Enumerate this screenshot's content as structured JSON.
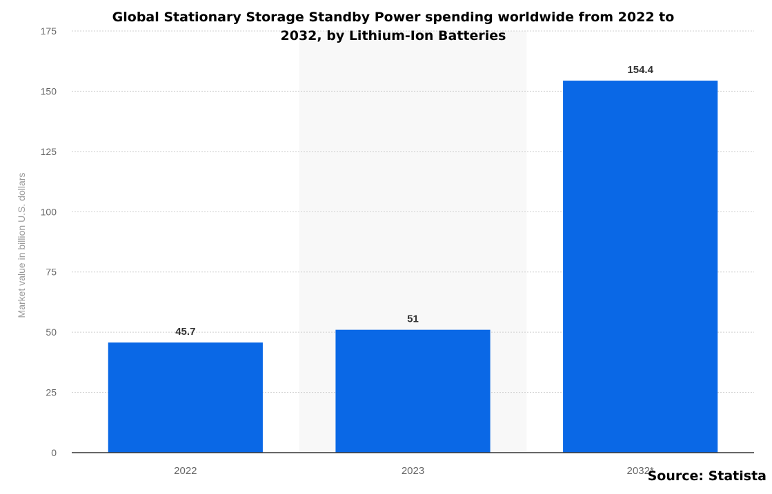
{
  "chart_data": {
    "type": "bar",
    "title": "Global Stationary Storage Standby Power spending worldwide from 2022 to 2032, by Lithium-Ion Batteries",
    "categories": [
      "2022",
      "2023",
      "2032*"
    ],
    "values": [
      45.7,
      51,
      154.4
    ],
    "data_labels": [
      "45.7",
      "51",
      "154.4"
    ],
    "xlabel": "",
    "ylabel": "Market value in billion U.S. dollars",
    "ylim": [
      0,
      175
    ],
    "yticks": [
      "0",
      "25",
      "50",
      "75",
      "100",
      "125",
      "150",
      "175"
    ],
    "grid": true,
    "highlighted_category": "2023",
    "bar_color": "#0a68e6",
    "highlight_color": "#f8f8f8",
    "source": "Source: Statista"
  }
}
